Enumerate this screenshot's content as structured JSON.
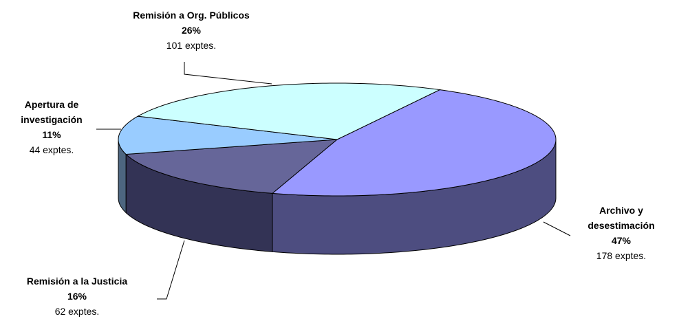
{
  "chart_data": {
    "type": "pie",
    "categories": [
      "Archivo y desestimación",
      "Remisión a la Justicia",
      "Apertura de investigación",
      "Remisión a Org. Públicos"
    ],
    "values": [
      47,
      16,
      11,
      26
    ],
    "value_labels": [
      "47%",
      "16%",
      "11%",
      "26%"
    ],
    "counts": [
      178,
      62,
      44,
      101
    ],
    "count_labels": [
      "178 exptes.",
      "62 exptes.",
      "44 exptes.",
      "101 exptes."
    ],
    "colors": [
      "#9999ff",
      "#666699",
      "#99ccff",
      "#ccffff"
    ],
    "side_colors": [
      "#4d4d80",
      "#333355",
      "#4d6680",
      "#668080"
    ]
  }
}
